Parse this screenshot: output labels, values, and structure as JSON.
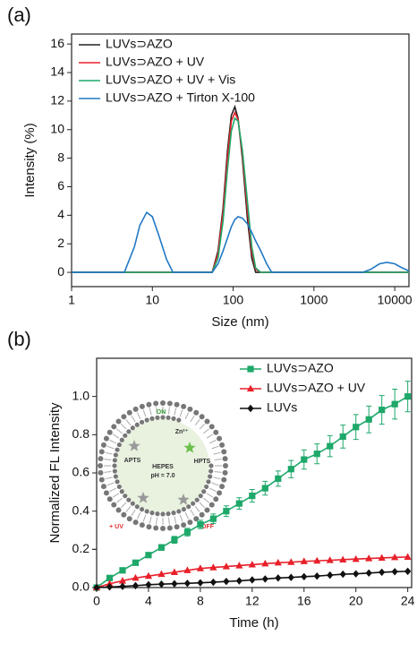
{
  "chart_data": [
    {
      "type": "line",
      "label": "(a)",
      "xlabel": "Size (nm)",
      "ylabel": "Intensity (%)",
      "xscale": "log",
      "xlim": [
        1,
        15000
      ],
      "xticks": [
        1,
        10,
        100,
        1000,
        10000
      ],
      "ylim": [
        -1,
        16.7
      ],
      "yticks": [
        0,
        2,
        4,
        6,
        8,
        10,
        12,
        14,
        16
      ],
      "legend": "upper left",
      "x": [
        1,
        4.5,
        6,
        7,
        8.5,
        10,
        12,
        15,
        18,
        55,
        65,
        75,
        85,
        95,
        105,
        115,
        130,
        150,
        170,
        190,
        220,
        260,
        300,
        1000,
        4000,
        5000,
        6500,
        8000,
        10000,
        12000,
        15000
      ],
      "series": [
        {
          "name": "LUVs⊃AZO",
          "color": "#222222",
          "values": [
            0,
            0,
            0,
            0,
            0,
            0,
            0,
            0,
            0,
            0,
            1.5,
            4.5,
            8.5,
            11.0,
            11.6,
            10.8,
            8.0,
            3.8,
            1.0,
            0,
            0,
            0,
            0,
            0,
            0,
            0,
            0,
            0,
            0,
            0,
            0
          ]
        },
        {
          "name": "LUVs⊃AZO + UV",
          "color": "#e8202a",
          "values": [
            0,
            0,
            0,
            0,
            0,
            0,
            0,
            0,
            0,
            0,
            1.3,
            4.2,
            8.0,
            10.6,
            11.2,
            10.7,
            8.3,
            4.4,
            1.4,
            0.2,
            0,
            0,
            0,
            0,
            0,
            0,
            0,
            0,
            0,
            0,
            0
          ]
        },
        {
          "name": "LUVs⊃AZO + UV + Vis",
          "color": "#1ea86a",
          "values": [
            0,
            0,
            0,
            0,
            0,
            0,
            0,
            0,
            0,
            0,
            1.0,
            3.6,
            7.2,
            9.9,
            10.8,
            10.6,
            8.6,
            5.0,
            1.8,
            0.3,
            0,
            0,
            0,
            0,
            0,
            0,
            0,
            0,
            0,
            0,
            0
          ]
        },
        {
          "name": "LUVs⊃AZO + Tirton X-100",
          "color": "#2178c4",
          "values": [
            0,
            0,
            1.8,
            3.3,
            4.2,
            3.9,
            2.6,
            0.9,
            0,
            0,
            0.6,
            1.5,
            2.4,
            3.2,
            3.7,
            3.9,
            3.8,
            3.4,
            2.8,
            2.2,
            1.5,
            0.6,
            0,
            0,
            0,
            0.2,
            0.6,
            0.7,
            0.6,
            0.35,
            0.1
          ]
        }
      ]
    },
    {
      "type": "line",
      "label": "(b)",
      "xlabel": "Time (h)",
      "ylabel": "Normalized FL Intensity",
      "xlim": [
        0,
        24.3
      ],
      "xticks": [
        0,
        4,
        8,
        12,
        16,
        20,
        24
      ],
      "ylim": [
        0,
        1.2
      ],
      "yticks": [
        {
          "value": 0,
          "label": "0.0"
        },
        0.2,
        0.4,
        0.6,
        0.8,
        {
          "value": 1,
          "label": "1.0"
        },
        0.2000001
      ],
      "legend": "upper right",
      "x": [
        0,
        1,
        2,
        3,
        4,
        5,
        6,
        7,
        8,
        9,
        10,
        11,
        12,
        13,
        14,
        15,
        16,
        17,
        18,
        19,
        20,
        21,
        22,
        23,
        24
      ],
      "series": [
        {
          "name": "LUVs⊃AZO",
          "color": "#1ea86a",
          "marker": "square",
          "values": [
            0,
            0.05,
            0.09,
            0.13,
            0.17,
            0.21,
            0.25,
            0.29,
            0.33,
            0.36,
            0.4,
            0.44,
            0.48,
            0.52,
            0.57,
            0.62,
            0.67,
            0.7,
            0.74,
            0.79,
            0.84,
            0.88,
            0.93,
            0.96,
            1.0
          ],
          "errors": [
            0,
            0.005,
            0.008,
            0.01,
            0.012,
            0.015,
            0.018,
            0.02,
            0.022,
            0.025,
            0.028,
            0.03,
            0.033,
            0.036,
            0.04,
            0.045,
            0.05,
            0.052,
            0.055,
            0.06,
            0.065,
            0.07,
            0.075,
            0.078,
            0.08
          ]
        },
        {
          "name": "LUVs⊃AZO + UV",
          "color": "#e8202a",
          "marker": "triangle",
          "values": [
            0,
            0.02,
            0.035,
            0.05,
            0.06,
            0.07,
            0.08,
            0.09,
            0.1,
            0.105,
            0.11,
            0.115,
            0.12,
            0.125,
            0.13,
            0.133,
            0.137,
            0.14,
            0.143,
            0.146,
            0.149,
            0.152,
            0.155,
            0.158,
            0.16
          ]
        },
        {
          "name": "LUVs",
          "color": "#111111",
          "marker": "diamond",
          "values": [
            0,
            0.003,
            0.006,
            0.01,
            0.015,
            0.018,
            0.02,
            0.022,
            0.025,
            0.028,
            0.032,
            0.035,
            0.04,
            0.045,
            0.05,
            0.053,
            0.057,
            0.06,
            0.065,
            0.07,
            0.072,
            0.076,
            0.08,
            0.083,
            0.085
          ]
        }
      ],
      "annotations": [
        "ON",
        "Zn²⁺",
        "APTS",
        "HPTS",
        "HEPES",
        "pH = 7.0",
        "+ UV",
        "OFF"
      ]
    }
  ]
}
